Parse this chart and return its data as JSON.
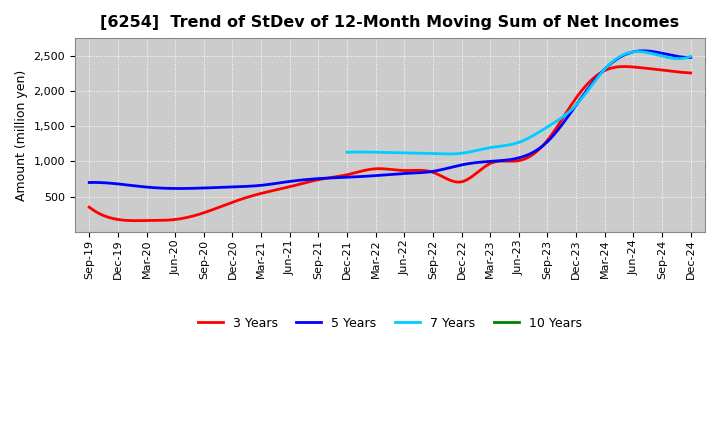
{
  "title": "[6254]  Trend of StDev of 12-Month Moving Sum of Net Incomes",
  "ylabel": "Amount (million yen)",
  "background_color": "#ffffff",
  "plot_bg_color": "#cccccc",
  "grid_color": "#ffffff",
  "title_fontsize": 11.5,
  "label_fontsize": 9,
  "tick_fontsize": 8,
  "ylim": [
    0,
    2750
  ],
  "yticks": [
    500,
    1000,
    1500,
    2000,
    2500
  ],
  "xtick_labels": [
    "Sep-19",
    "Dec-19",
    "Mar-20",
    "Jun-20",
    "Sep-20",
    "Dec-20",
    "Mar-21",
    "Jun-21",
    "Sep-21",
    "Dec-21",
    "Mar-22",
    "Jun-22",
    "Sep-22",
    "Dec-22",
    "Mar-23",
    "Jun-23",
    "Sep-23",
    "Dec-23",
    "Mar-24",
    "Jun-24",
    "Sep-24",
    "Dec-24"
  ],
  "series": [
    {
      "name": "3 Years",
      "color": "#ff0000",
      "linewidth": 2.0,
      "x_indices": [
        0,
        1,
        2,
        3,
        4,
        5,
        6,
        7,
        8,
        9,
        10,
        11,
        12,
        13,
        14,
        15,
        16,
        17,
        18,
        19,
        20,
        21
      ],
      "values": [
        350,
        175,
        160,
        175,
        270,
        420,
        545,
        640,
        740,
        810,
        895,
        870,
        845,
        710,
        970,
        1010,
        1300,
        1900,
        2290,
        2340,
        2295,
        2255
      ]
    },
    {
      "name": "5 Years",
      "color": "#0000ff",
      "linewidth": 2.0,
      "x_indices": [
        0,
        1,
        2,
        3,
        4,
        5,
        6,
        7,
        8,
        9,
        10,
        11,
        12,
        13,
        14,
        15,
        16,
        17,
        18,
        19,
        20,
        21
      ],
      "values": [
        700,
        680,
        635,
        615,
        622,
        637,
        660,
        715,
        755,
        775,
        798,
        828,
        858,
        950,
        1000,
        1050,
        1280,
        1800,
        2310,
        2555,
        2535,
        2475
      ]
    },
    {
      "name": "7 Years",
      "color": "#00ccff",
      "linewidth": 2.0,
      "x_indices": [
        9,
        10,
        11,
        12,
        13,
        14,
        15,
        16,
        17,
        18,
        19,
        20,
        21
      ],
      "values": [
        1130,
        1130,
        1120,
        1110,
        1115,
        1195,
        1270,
        1490,
        1800,
        2310,
        2555,
        2495,
        2490
      ]
    },
    {
      "name": "10 Years",
      "color": "#008000",
      "linewidth": 2.0,
      "x_indices": [],
      "values": []
    }
  ],
  "legend_entries": [
    "3 Years",
    "5 Years",
    "7 Years",
    "10 Years"
  ],
  "legend_colors": [
    "#ff0000",
    "#0000ff",
    "#00ccff",
    "#008000"
  ]
}
